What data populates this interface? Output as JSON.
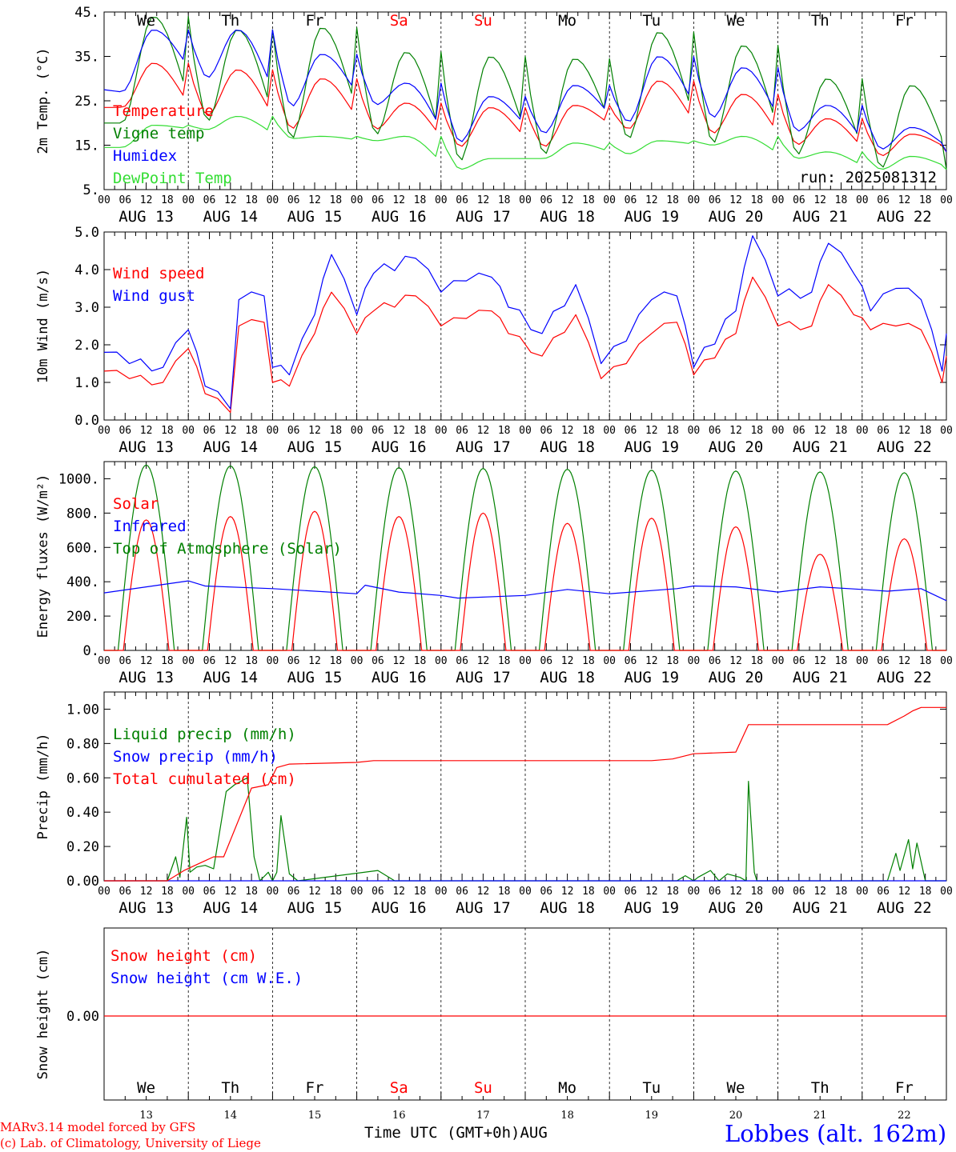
{
  "run_label": "run: 2025081312",
  "footer": {
    "model": "MARv3.14 model forced by GFS",
    "credit": "(c) Lab. of Climatology, University of Liege",
    "xlabel": "Time UTC (GMT+0h)",
    "month": "AUG",
    "station": "Lobbes (alt. 162m)"
  },
  "days": {
    "weekday": [
      "We",
      "Th",
      "Fr",
      "Sa",
      "Su",
      "Mo",
      "Tu",
      "We",
      "Th",
      "Fr"
    ],
    "weekend_flags": [
      false,
      false,
      false,
      true,
      true,
      false,
      false,
      false,
      false,
      false
    ],
    "date_labels": [
      "AUG 13",
      "AUG 14",
      "AUG 15",
      "AUG 16",
      "AUG 17",
      "AUG 18",
      "AUG 19",
      "AUG 20",
      "AUG 21",
      "AUG 22"
    ],
    "day_numbers": [
      "13",
      "14",
      "15",
      "16",
      "17",
      "18",
      "19",
      "20",
      "21",
      "22"
    ],
    "hour_ticks": [
      "00",
      "06",
      "12",
      "18"
    ],
    "final_tick": "00"
  },
  "colors": {
    "red": "#ff0000",
    "blue": "#0000ff",
    "green": "#008000",
    "lightgreen": "#33dd33",
    "weekend": "#ff0000"
  },
  "chart_data": [
    {
      "type": "line",
      "ylabel": "2m Temp. (°C)",
      "ylim": [
        5,
        45
      ],
      "yticks": [
        "45.",
        "35.",
        "25.",
        "15.",
        "5."
      ],
      "ytick_values": [
        45,
        35,
        25,
        15,
        5
      ],
      "legend": [
        "Temperature",
        "Vigne temp",
        "Humidex",
        "DewPoint Temp"
      ],
      "series": [
        {
          "name": "Temperature",
          "color": "red",
          "peaks": [
            33.5,
            32,
            30,
            24.5,
            23.5,
            24,
            29.5,
            26.5,
            21,
            17.5
          ],
          "troughs": [
            23.5,
            21.5,
            18.5,
            18.5,
            14.5,
            14.5,
            18.5,
            17.5,
            15,
            12.5
          ],
          "final": 13.5,
          "start": 23.5
        },
        {
          "name": "Vigne temp",
          "color": "green",
          "peaks": [
            44,
            41,
            41.5,
            36,
            35,
            34.5,
            40.5,
            37.5,
            30,
            28.5
          ],
          "troughs": [
            20,
            20,
            16,
            17,
            11,
            12.5,
            16,
            15,
            12.5,
            9.5
          ],
          "final": 9.5,
          "start": 20
        },
        {
          "name": "Humidex",
          "color": "blue",
          "peaks": [
            41,
            41,
            35.5,
            29,
            26,
            28.5,
            35,
            32.5,
            24,
            19
          ],
          "troughs": [
            27,
            30,
            23.5,
            24,
            15.5,
            17.5,
            20,
            21,
            18,
            14
          ],
          "final": 13.5,
          "start": 27.5
        },
        {
          "name": "DewPoint Temp",
          "color": "lightgreen",
          "peaks": [
            19.5,
            21.5,
            17,
            17,
            12,
            15.5,
            16,
            17,
            13.5,
            12.5
          ],
          "troughs": [
            14.5,
            18.5,
            16.5,
            16,
            9.5,
            12,
            13,
            15,
            12,
            9.5
          ],
          "final": 9.5,
          "start": 14.5
        }
      ]
    },
    {
      "type": "line",
      "ylabel": "10m Wind (m/s)",
      "ylim": [
        0,
        5
      ],
      "yticks": [
        "5.0",
        "4.0",
        "3.0",
        "2.0",
        "1.0",
        "0.0"
      ],
      "ytick_values": [
        5,
        4,
        3,
        2,
        1,
        0
      ],
      "legend": [
        "Wind speed",
        "Wind gust"
      ],
      "series": [
        {
          "name": "Wind speed",
          "color": "red",
          "points": [
            [
              0,
              1.3
            ],
            [
              0.3,
              1.1
            ],
            [
              0.7,
              1.0
            ],
            [
              1.0,
              1.9
            ],
            [
              1.2,
              0.7
            ],
            [
              1.5,
              0.2
            ],
            [
              1.6,
              2.5
            ],
            [
              1.9,
              2.6
            ],
            [
              2.0,
              1.0
            ],
            [
              2.2,
              0.9
            ],
            [
              2.5,
              2.3
            ],
            [
              2.7,
              3.4
            ],
            [
              3.0,
              2.3
            ],
            [
              3.2,
              2.9
            ],
            [
              3.7,
              3.3
            ],
            [
              4.0,
              2.5
            ],
            [
              4.3,
              2.7
            ],
            [
              4.6,
              2.9
            ],
            [
              4.8,
              2.3
            ],
            [
              5.2,
              1.7
            ],
            [
              5.6,
              2.8
            ],
            [
              5.9,
              1.1
            ],
            [
              6.2,
              1.5
            ],
            [
              6.5,
              2.3
            ],
            [
              6.8,
              2.6
            ],
            [
              7.0,
              1.2
            ],
            [
              7.5,
              2.3
            ],
            [
              7.7,
              3.8
            ],
            [
              8.0,
              2.5
            ],
            [
              8.4,
              2.5
            ],
            [
              8.6,
              3.6
            ],
            [
              8.9,
              2.8
            ],
            [
              9.1,
              2.4
            ],
            [
              9.4,
              2.5
            ],
            [
              9.7,
              2.4
            ],
            [
              9.95,
              1.0
            ],
            [
              10.0,
              1.7
            ]
          ]
        },
        {
          "name": "Wind gust",
          "color": "blue",
          "points": [
            [
              0,
              1.8
            ],
            [
              0.3,
              1.5
            ],
            [
              0.7,
              1.4
            ],
            [
              1.0,
              2.4
            ],
            [
              1.2,
              0.9
            ],
            [
              1.5,
              0.3
            ],
            [
              1.6,
              3.2
            ],
            [
              1.9,
              3.3
            ],
            [
              2.0,
              1.4
            ],
            [
              2.2,
              1.2
            ],
            [
              2.5,
              2.8
            ],
            [
              2.7,
              4.4
            ],
            [
              3.0,
              2.8
            ],
            [
              3.2,
              3.9
            ],
            [
              3.7,
              4.3
            ],
            [
              4.0,
              3.4
            ],
            [
              4.3,
              3.7
            ],
            [
              4.6,
              3.8
            ],
            [
              4.8,
              3.0
            ],
            [
              5.2,
              2.3
            ],
            [
              5.6,
              3.6
            ],
            [
              5.9,
              1.5
            ],
            [
              6.2,
              2.1
            ],
            [
              6.5,
              3.2
            ],
            [
              6.8,
              3.3
            ],
            [
              7.0,
              1.4
            ],
            [
              7.5,
              2.9
            ],
            [
              7.7,
              4.9
            ],
            [
              8.0,
              3.3
            ],
            [
              8.4,
              3.4
            ],
            [
              8.6,
              4.7
            ],
            [
              8.9,
              3.9
            ],
            [
              9.1,
              2.9
            ],
            [
              9.4,
              3.5
            ],
            [
              9.7,
              3.2
            ],
            [
              9.95,
              1.3
            ],
            [
              10.0,
              2.3
            ]
          ]
        }
      ]
    },
    {
      "type": "line",
      "ylabel": "Energy fluxes (W/m²)",
      "ylim": [
        0,
        1100
      ],
      "yticks": [
        "1000.",
        "800.",
        "600.",
        "400.",
        "200.",
        "0."
      ],
      "ytick_values": [
        1000,
        800,
        600,
        400,
        200,
        0
      ],
      "legend": [
        "Solar",
        "Infrared",
        "Top of Atmosphere (Solar)"
      ],
      "series": [
        {
          "name": "Solar",
          "color": "red",
          "daily_peak": [
            760,
            780,
            810,
            780,
            800,
            740,
            770,
            720,
            560,
            650
          ]
        },
        {
          "name": "Infrared",
          "color": "blue",
          "points": [
            [
              0,
              335
            ],
            [
              1,
              405
            ],
            [
              1.2,
              375
            ],
            [
              2,
              360
            ],
            [
              3,
              330
            ],
            [
              3.1,
              380
            ],
            [
              3.5,
              340
            ],
            [
              4,
              320
            ],
            [
              4.2,
              305
            ],
            [
              5,
              320
            ],
            [
              5.5,
              355
            ],
            [
              6,
              330
            ],
            [
              6.8,
              360
            ],
            [
              7,
              375
            ],
            [
              7.5,
              370
            ],
            [
              8,
              340
            ],
            [
              8.5,
              370
            ],
            [
              9,
              355
            ],
            [
              9.3,
              345
            ],
            [
              9.7,
              360
            ],
            [
              10,
              290
            ]
          ]
        },
        {
          "name": "Top of Atmosphere (Solar)",
          "color": "green",
          "daily_peak": [
            1080,
            1075,
            1070,
            1065,
            1060,
            1055,
            1050,
            1045,
            1040,
            1035
          ]
        }
      ]
    },
    {
      "type": "line",
      "ylabel": "Precip (mm/h)",
      "ylim": [
        0,
        1.1
      ],
      "yticks": [
        "1.00",
        "0.80",
        "0.60",
        "0.40",
        "0.20",
        "0.00"
      ],
      "ytick_values": [
        1.0,
        0.8,
        0.6,
        0.4,
        0.2,
        0.0
      ],
      "legend": [
        "Liquid precip (mm/h)",
        "Snow precip (mm/h)",
        "Total cumulated (cm)"
      ],
      "series": [
        {
          "name": "Liquid precip (mm/h)",
          "color": "green",
          "points": [
            [
              0,
              0
            ],
            [
              0.75,
              0
            ],
            [
              0.85,
              0.14
            ],
            [
              0.9,
              0.02
            ],
            [
              0.98,
              0.37
            ],
            [
              1.02,
              0.05
            ],
            [
              1.1,
              0.08
            ],
            [
              1.2,
              0.09
            ],
            [
              1.3,
              0.07
            ],
            [
              1.45,
              0.52
            ],
            [
              1.55,
              0.56
            ],
            [
              1.7,
              0.6
            ],
            [
              1.78,
              0.14
            ],
            [
              1.85,
              0
            ],
            [
              1.95,
              0.05
            ],
            [
              2.0,
              0.0
            ],
            [
              2.05,
              0.05
            ],
            [
              2.1,
              0.38
            ],
            [
              2.2,
              0.04
            ],
            [
              2.3,
              0
            ],
            [
              3.25,
              0.06
            ],
            [
              3.45,
              0
            ],
            [
              6.8,
              0
            ],
            [
              6.9,
              0.03
            ],
            [
              7.0,
              0
            ],
            [
              7.05,
              0.02
            ],
            [
              7.2,
              0.06
            ],
            [
              7.3,
              0.0
            ],
            [
              7.4,
              0.04
            ],
            [
              7.55,
              0.02
            ],
            [
              7.62,
              0
            ],
            [
              7.65,
              0.58
            ],
            [
              7.72,
              0.05
            ],
            [
              7.75,
              0
            ],
            [
              9.3,
              0
            ],
            [
              9.4,
              0.16
            ],
            [
              9.45,
              0.06
            ],
            [
              9.55,
              0.24
            ],
            [
              9.6,
              0.07
            ],
            [
              9.65,
              0.22
            ],
            [
              9.75,
              0
            ],
            [
              10,
              0
            ]
          ]
        },
        {
          "name": "Snow precip (mm/h)",
          "color": "blue",
          "points": [
            [
              0,
              0
            ],
            [
              10,
              0
            ]
          ]
        },
        {
          "name": "Total cumulated (cm)",
          "color": "red",
          "points": [
            [
              0,
              0
            ],
            [
              0.75,
              0
            ],
            [
              0.95,
              0.06
            ],
            [
              1.3,
              0.14
            ],
            [
              1.42,
              0.14
            ],
            [
              1.75,
              0.54
            ],
            [
              1.95,
              0.56
            ],
            [
              2.05,
              0.66
            ],
            [
              2.2,
              0.68
            ],
            [
              3,
              0.69
            ],
            [
              3.2,
              0.7
            ],
            [
              4,
              0.7
            ],
            [
              6.5,
              0.7
            ],
            [
              6.75,
              0.71
            ],
            [
              7,
              0.74
            ],
            [
              7.5,
              0.75
            ],
            [
              7.65,
              0.91
            ],
            [
              9.3,
              0.91
            ],
            [
              9.5,
              0.96
            ],
            [
              9.6,
              0.99
            ],
            [
              9.7,
              1.01
            ],
            [
              10,
              1.01
            ]
          ]
        }
      ]
    },
    {
      "type": "line",
      "ylabel": "Snow height (cm)",
      "yticks": [
        "0.00"
      ],
      "ytick_values": [
        0
      ],
      "legend": [
        "Snow height (cm)",
        "Snow height (cm W.E.)"
      ],
      "series": [
        {
          "name": "Snow height (cm)",
          "color": "red",
          "points": [
            [
              0,
              0
            ],
            [
              10,
              0
            ]
          ]
        },
        {
          "name": "Snow height (cm W.E.)",
          "color": "blue",
          "points": [
            [
              0,
              0
            ],
            [
              10,
              0
            ]
          ]
        }
      ]
    }
  ]
}
